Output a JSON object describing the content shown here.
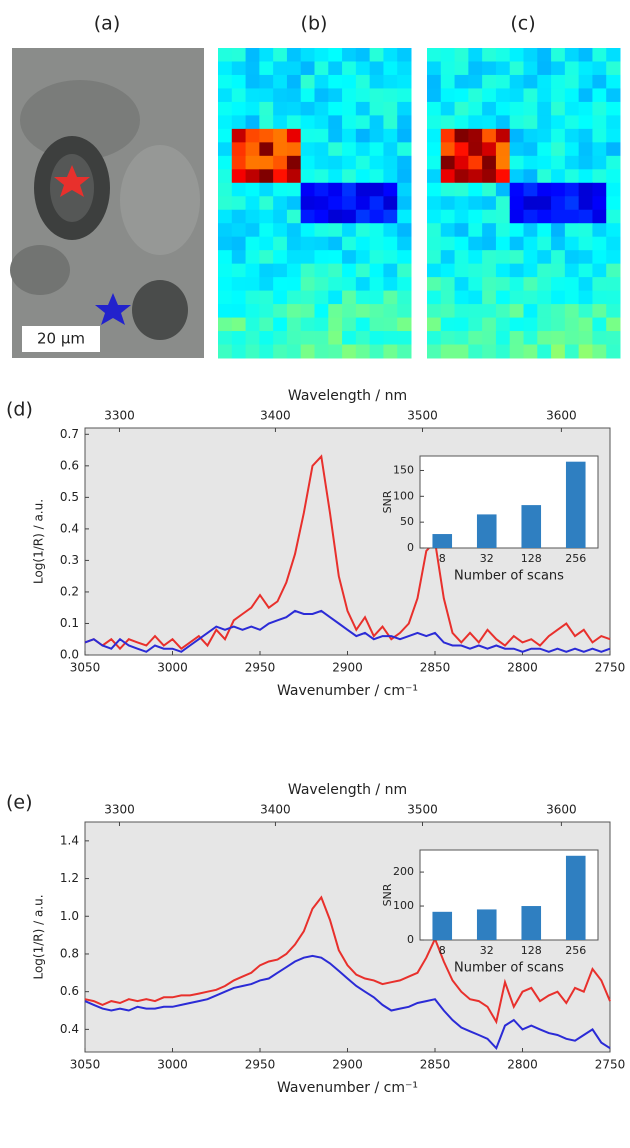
{
  "panel_labels": [
    "(a)",
    "(b)",
    "(c)",
    "(d)",
    "(e)"
  ],
  "scale_bar": "20 μm",
  "chart_data": [
    {
      "type": "line",
      "xlabel": "Wavenumber / cm⁻¹",
      "ylabel": "Log(1/R) / a.u.",
      "x2label": "Wavelength / nm",
      "x": [
        3050,
        3045,
        3040,
        3035,
        3030,
        3025,
        3020,
        3015,
        3010,
        3005,
        3000,
        2995,
        2990,
        2985,
        2980,
        2975,
        2970,
        2965,
        2960,
        2955,
        2950,
        2945,
        2940,
        2935,
        2930,
        2925,
        2920,
        2915,
        2910,
        2905,
        2900,
        2895,
        2890,
        2885,
        2880,
        2875,
        2870,
        2865,
        2860,
        2855,
        2850,
        2845,
        2840,
        2835,
        2830,
        2825,
        2820,
        2815,
        2810,
        2805,
        2800,
        2795,
        2790,
        2785,
        2780,
        2775,
        2770,
        2765,
        2760,
        2755,
        2750
      ],
      "series": [
        {
          "color": "#e8302c",
          "values": [
            0.04,
            0.05,
            0.03,
            0.05,
            0.02,
            0.05,
            0.04,
            0.03,
            0.06,
            0.03,
            0.05,
            0.02,
            0.04,
            0.06,
            0.03,
            0.08,
            0.05,
            0.11,
            0.13,
            0.15,
            0.19,
            0.15,
            0.17,
            0.23,
            0.32,
            0.45,
            0.6,
            0.63,
            0.45,
            0.25,
            0.14,
            0.08,
            0.12,
            0.06,
            0.09,
            0.05,
            0.07,
            0.1,
            0.18,
            0.33,
            0.36,
            0.18,
            0.07,
            0.04,
            0.07,
            0.04,
            0.08,
            0.05,
            0.03,
            0.06,
            0.04,
            0.05,
            0.03,
            0.06,
            0.08,
            0.1,
            0.06,
            0.08,
            0.04,
            0.06,
            0.05
          ]
        },
        {
          "color": "#2b2bd6",
          "values": [
            0.04,
            0.05,
            0.03,
            0.02,
            0.05,
            0.03,
            0.02,
            0.01,
            0.03,
            0.02,
            0.02,
            0.01,
            0.03,
            0.05,
            0.07,
            0.09,
            0.08,
            0.09,
            0.08,
            0.09,
            0.08,
            0.1,
            0.11,
            0.12,
            0.14,
            0.13,
            0.13,
            0.14,
            0.12,
            0.1,
            0.08,
            0.06,
            0.07,
            0.05,
            0.06,
            0.06,
            0.05,
            0.06,
            0.07,
            0.06,
            0.07,
            0.04,
            0.03,
            0.03,
            0.02,
            0.03,
            0.02,
            0.03,
            0.02,
            0.02,
            0.01,
            0.02,
            0.02,
            0.01,
            0.02,
            0.01,
            0.02,
            0.01,
            0.02,
            0.01,
            0.02
          ]
        }
      ],
      "xlim": [
        3050,
        2750
      ],
      "xticks": [
        3050,
        3000,
        2950,
        2900,
        2850,
        2800,
        2750
      ],
      "ylim": [
        0,
        0.72
      ],
      "yticks": [
        {
          "value": 0,
          "label": "0.0"
        },
        0.1,
        0.2,
        0.3,
        0.4,
        0.5,
        0.6,
        0.7
      ],
      "x2ticks": [
        3300,
        3400,
        3500,
        3600
      ]
    },
    {
      "type": "bar",
      "xlabel": "Number of scans",
      "ylabel": "SNR",
      "categories": [
        "8",
        "32",
        "128",
        "256"
      ],
      "values": [
        27,
        65,
        83,
        167
      ],
      "color": "#2f7fc1",
      "ylim": [
        0,
        178
      ],
      "yticks": [
        0,
        50,
        100,
        150
      ]
    },
    {
      "type": "line",
      "xlabel": "Wavenumber / cm⁻¹",
      "ylabel": "Log(1/R) / a.u.",
      "x2label": "Wavelength / nm",
      "x": [
        3050,
        3045,
        3040,
        3035,
        3030,
        3025,
        3020,
        3015,
        3010,
        3005,
        3000,
        2995,
        2990,
        2985,
        2980,
        2975,
        2970,
        2965,
        2960,
        2955,
        2950,
        2945,
        2940,
        2935,
        2930,
        2925,
        2920,
        2915,
        2910,
        2905,
        2900,
        2895,
        2890,
        2885,
        2880,
        2875,
        2870,
        2865,
        2860,
        2855,
        2850,
        2845,
        2840,
        2835,
        2830,
        2825,
        2820,
        2815,
        2810,
        2805,
        2800,
        2795,
        2790,
        2785,
        2780,
        2775,
        2770,
        2765,
        2760,
        2755,
        2750
      ],
      "series": [
        {
          "color": "#e8302c",
          "values": [
            0.56,
            0.55,
            0.53,
            0.55,
            0.54,
            0.56,
            0.55,
            0.56,
            0.55,
            0.57,
            0.57,
            0.58,
            0.58,
            0.59,
            0.6,
            0.61,
            0.63,
            0.66,
            0.68,
            0.7,
            0.74,
            0.76,
            0.77,
            0.8,
            0.85,
            0.92,
            1.04,
            1.1,
            0.98,
            0.82,
            0.74,
            0.69,
            0.67,
            0.66,
            0.64,
            0.65,
            0.66,
            0.68,
            0.7,
            0.78,
            0.88,
            0.76,
            0.66,
            0.6,
            0.56,
            0.55,
            0.52,
            0.44,
            0.65,
            0.52,
            0.6,
            0.62,
            0.55,
            0.58,
            0.6,
            0.54,
            0.62,
            0.6,
            0.72,
            0.66,
            0.55
          ]
        },
        {
          "color": "#2b2bd6",
          "values": [
            0.55,
            0.53,
            0.51,
            0.5,
            0.51,
            0.5,
            0.52,
            0.51,
            0.51,
            0.52,
            0.52,
            0.53,
            0.54,
            0.55,
            0.56,
            0.58,
            0.6,
            0.62,
            0.63,
            0.64,
            0.66,
            0.67,
            0.7,
            0.73,
            0.76,
            0.78,
            0.79,
            0.78,
            0.75,
            0.71,
            0.67,
            0.63,
            0.6,
            0.57,
            0.53,
            0.5,
            0.51,
            0.52,
            0.54,
            0.55,
            0.56,
            0.5,
            0.45,
            0.41,
            0.39,
            0.37,
            0.35,
            0.3,
            0.42,
            0.45,
            0.4,
            0.42,
            0.4,
            0.38,
            0.37,
            0.35,
            0.34,
            0.37,
            0.4,
            0.33,
            0.3
          ]
        }
      ],
      "xlim": [
        3050,
        2750
      ],
      "xticks": [
        3050,
        3000,
        2950,
        2900,
        2850,
        2800,
        2750
      ],
      "ylim": [
        0.28,
        1.5
      ],
      "yticks": [
        0.4,
        0.6,
        0.8,
        {
          "value": 1,
          "label": "1.0"
        },
        1.2,
        1.4
      ],
      "x2ticks": [
        3300,
        3400,
        3500,
        3600
      ]
    },
    {
      "type": "bar",
      "xlabel": "Number of scans",
      "ylabel": "SNR",
      "categories": [
        "8",
        "32",
        "128",
        "256"
      ],
      "values": [
        83,
        90,
        100,
        248
      ],
      "color": "#2f7fc1",
      "ylim": [
        0,
        265
      ],
      "yticks": [
        0,
        100,
        200
      ]
    }
  ]
}
